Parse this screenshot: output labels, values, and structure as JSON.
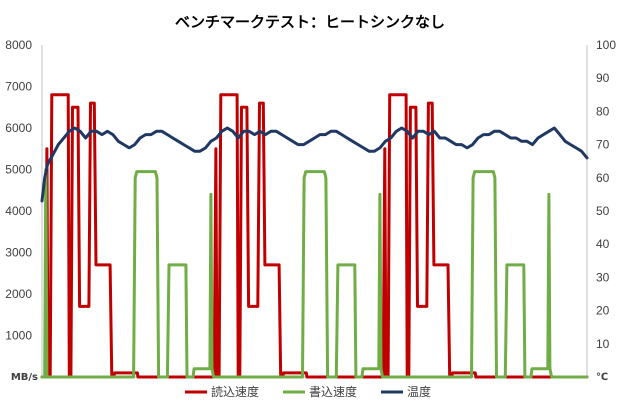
{
  "chart_data": {
    "type": "line",
    "title": "ベンチマークテスト：ヒートシンクなし",
    "y_left": {
      "unit": "MB/s",
      "min": 0,
      "max": 8000,
      "ticks": [
        1000,
        2000,
        3000,
        4000,
        5000,
        6000,
        7000,
        8000
      ]
    },
    "y_right": {
      "unit": "℃",
      "min": 0,
      "max": 100,
      "ticks": [
        10,
        20,
        30,
        40,
        50,
        60,
        70,
        80,
        90,
        100
      ]
    },
    "x": {
      "min": 0,
      "max": 100
    },
    "grid": false,
    "legend_position": "bottom",
    "series": [
      {
        "name": "読込速度",
        "color": "#c00000",
        "axis": "left",
        "points": [
          [
            0,
            0
          ],
          [
            0.6,
            0
          ],
          [
            0.9,
            5500
          ],
          [
            1.1,
            0
          ],
          [
            1.5,
            0
          ],
          [
            1.8,
            6800
          ],
          [
            4.8,
            6800
          ],
          [
            5.0,
            0
          ],
          [
            5.3,
            0
          ],
          [
            5.6,
            6500
          ],
          [
            6.6,
            6500
          ],
          [
            6.9,
            1700
          ],
          [
            8.6,
            1700
          ],
          [
            8.9,
            6600
          ],
          [
            9.6,
            6600
          ],
          [
            9.9,
            2700
          ],
          [
            12.5,
            2700
          ],
          [
            12.8,
            0
          ],
          [
            13.2,
            0
          ],
          [
            13.3,
            100
          ],
          [
            17.5,
            100
          ],
          [
            17.6,
            0
          ],
          [
            31.6,
            0
          ],
          [
            31.9,
            5500
          ],
          [
            32.1,
            0
          ],
          [
            32.5,
            0
          ],
          [
            32.8,
            6800
          ],
          [
            35.8,
            6800
          ],
          [
            36.0,
            0
          ],
          [
            36.3,
            0
          ],
          [
            36.6,
            6500
          ],
          [
            37.6,
            6500
          ],
          [
            37.9,
            1700
          ],
          [
            39.6,
            1700
          ],
          [
            39.9,
            6600
          ],
          [
            40.6,
            6600
          ],
          [
            40.9,
            2700
          ],
          [
            43.5,
            2700
          ],
          [
            43.8,
            0
          ],
          [
            44.2,
            0
          ],
          [
            44.3,
            100
          ],
          [
            48.5,
            100
          ],
          [
            48.6,
            0
          ],
          [
            62.6,
            0
          ],
          [
            62.9,
            5500
          ],
          [
            63.1,
            0
          ],
          [
            63.5,
            0
          ],
          [
            63.8,
            6800
          ],
          [
            66.8,
            6800
          ],
          [
            67.0,
            0
          ],
          [
            67.3,
            0
          ],
          [
            67.6,
            6500
          ],
          [
            68.6,
            6500
          ],
          [
            68.9,
            1700
          ],
          [
            70.6,
            1700
          ],
          [
            70.9,
            6600
          ],
          [
            71.6,
            6600
          ],
          [
            71.9,
            2700
          ],
          [
            74.5,
            2700
          ],
          [
            74.8,
            0
          ],
          [
            75.2,
            0
          ],
          [
            75.3,
            100
          ],
          [
            79.5,
            100
          ],
          [
            79.6,
            0
          ],
          [
            100,
            0
          ]
        ]
      },
      {
        "name": "書込速度",
        "color": "#70ad47",
        "axis": "left",
        "points": [
          [
            0,
            0
          ],
          [
            0.5,
            0
          ],
          [
            0.7,
            5000
          ],
          [
            0.9,
            0
          ],
          [
            16.8,
            0
          ],
          [
            17.1,
            4800
          ],
          [
            17.4,
            4950
          ],
          [
            20.8,
            4950
          ],
          [
            21.1,
            4800
          ],
          [
            21.4,
            0
          ],
          [
            23.0,
            0
          ],
          [
            23.3,
            2700
          ],
          [
            26.4,
            2700
          ],
          [
            26.6,
            0
          ],
          [
            27.7,
            0
          ],
          [
            27.9,
            200
          ],
          [
            30.8,
            200
          ],
          [
            31.0,
            4400
          ],
          [
            31.2,
            200
          ],
          [
            31.5,
            0
          ],
          [
            47.8,
            0
          ],
          [
            48.1,
            4800
          ],
          [
            48.4,
            4950
          ],
          [
            51.8,
            4950
          ],
          [
            52.1,
            4800
          ],
          [
            52.4,
            0
          ],
          [
            54.0,
            0
          ],
          [
            54.3,
            2700
          ],
          [
            57.4,
            2700
          ],
          [
            57.6,
            0
          ],
          [
            58.7,
            0
          ],
          [
            58.9,
            200
          ],
          [
            61.8,
            200
          ],
          [
            62.0,
            4400
          ],
          [
            62.2,
            200
          ],
          [
            62.5,
            0
          ],
          [
            78.8,
            0
          ],
          [
            79.1,
            4800
          ],
          [
            79.4,
            4950
          ],
          [
            82.8,
            4950
          ],
          [
            83.1,
            4800
          ],
          [
            83.4,
            0
          ],
          [
            85.0,
            0
          ],
          [
            85.3,
            2700
          ],
          [
            88.4,
            2700
          ],
          [
            88.6,
            0
          ],
          [
            89.7,
            0
          ],
          [
            89.9,
            200
          ],
          [
            92.8,
            200
          ],
          [
            93.0,
            4400
          ],
          [
            93.2,
            200
          ],
          [
            93.5,
            0
          ],
          [
            100,
            0
          ]
        ]
      },
      {
        "name": "温度",
        "color": "#1f3864",
        "axis": "right",
        "points": [
          [
            0,
            53
          ],
          [
            0.5,
            60
          ],
          [
            1,
            64
          ],
          [
            2,
            67
          ],
          [
            3,
            70
          ],
          [
            4,
            72
          ],
          [
            5,
            74
          ],
          [
            6,
            75
          ],
          [
            7,
            74
          ],
          [
            8,
            72
          ],
          [
            9,
            74
          ],
          [
            10,
            74
          ],
          [
            11,
            73
          ],
          [
            12,
            74
          ],
          [
            13,
            73
          ],
          [
            14,
            71
          ],
          [
            15,
            70
          ],
          [
            16,
            69
          ],
          [
            17,
            70
          ],
          [
            18,
            72
          ],
          [
            19,
            73
          ],
          [
            20,
            73
          ],
          [
            21,
            74
          ],
          [
            22,
            74
          ],
          [
            23,
            73
          ],
          [
            24,
            72
          ],
          [
            25,
            71
          ],
          [
            26,
            70
          ],
          [
            27,
            69
          ],
          [
            28,
            68
          ],
          [
            29,
            68
          ],
          [
            30,
            69
          ],
          [
            31,
            71
          ],
          [
            32,
            72
          ],
          [
            33,
            74
          ],
          [
            34,
            75
          ],
          [
            35,
            74
          ],
          [
            36,
            72
          ],
          [
            37,
            74
          ],
          [
            38,
            74
          ],
          [
            39,
            73
          ],
          [
            40,
            74
          ],
          [
            41,
            73
          ],
          [
            42,
            74
          ],
          [
            43,
            74
          ],
          [
            44,
            73
          ],
          [
            45,
            72
          ],
          [
            46,
            71
          ],
          [
            47,
            70
          ],
          [
            48,
            70
          ],
          [
            49,
            71
          ],
          [
            50,
            72
          ],
          [
            51,
            73
          ],
          [
            52,
            73
          ],
          [
            53,
            74
          ],
          [
            54,
            74
          ],
          [
            55,
            73
          ],
          [
            56,
            72
          ],
          [
            57,
            71
          ],
          [
            58,
            70
          ],
          [
            59,
            69
          ],
          [
            60,
            68
          ],
          [
            61,
            68
          ],
          [
            62,
            69
          ],
          [
            63,
            71
          ],
          [
            64,
            72
          ],
          [
            65,
            74
          ],
          [
            66,
            75
          ],
          [
            67,
            74
          ],
          [
            68,
            72
          ],
          [
            69,
            74
          ],
          [
            70,
            74
          ],
          [
            71,
            73
          ],
          [
            72,
            74
          ],
          [
            73,
            72
          ],
          [
            74,
            72
          ],
          [
            75,
            71
          ],
          [
            76,
            70
          ],
          [
            77,
            70
          ],
          [
            78,
            69
          ],
          [
            79,
            70
          ],
          [
            80,
            72
          ],
          [
            81,
            73
          ],
          [
            82,
            73
          ],
          [
            83,
            74
          ],
          [
            84,
            74
          ],
          [
            85,
            73
          ],
          [
            86,
            72
          ],
          [
            87,
            72
          ],
          [
            88,
            71
          ],
          [
            89,
            71
          ],
          [
            90,
            70
          ],
          [
            91,
            72
          ],
          [
            92,
            73
          ],
          [
            93,
            74
          ],
          [
            94,
            75
          ],
          [
            95,
            73
          ],
          [
            96,
            71
          ],
          [
            97,
            70
          ],
          [
            98,
            69
          ],
          [
            99,
            68
          ],
          [
            100,
            66
          ]
        ]
      }
    ]
  }
}
